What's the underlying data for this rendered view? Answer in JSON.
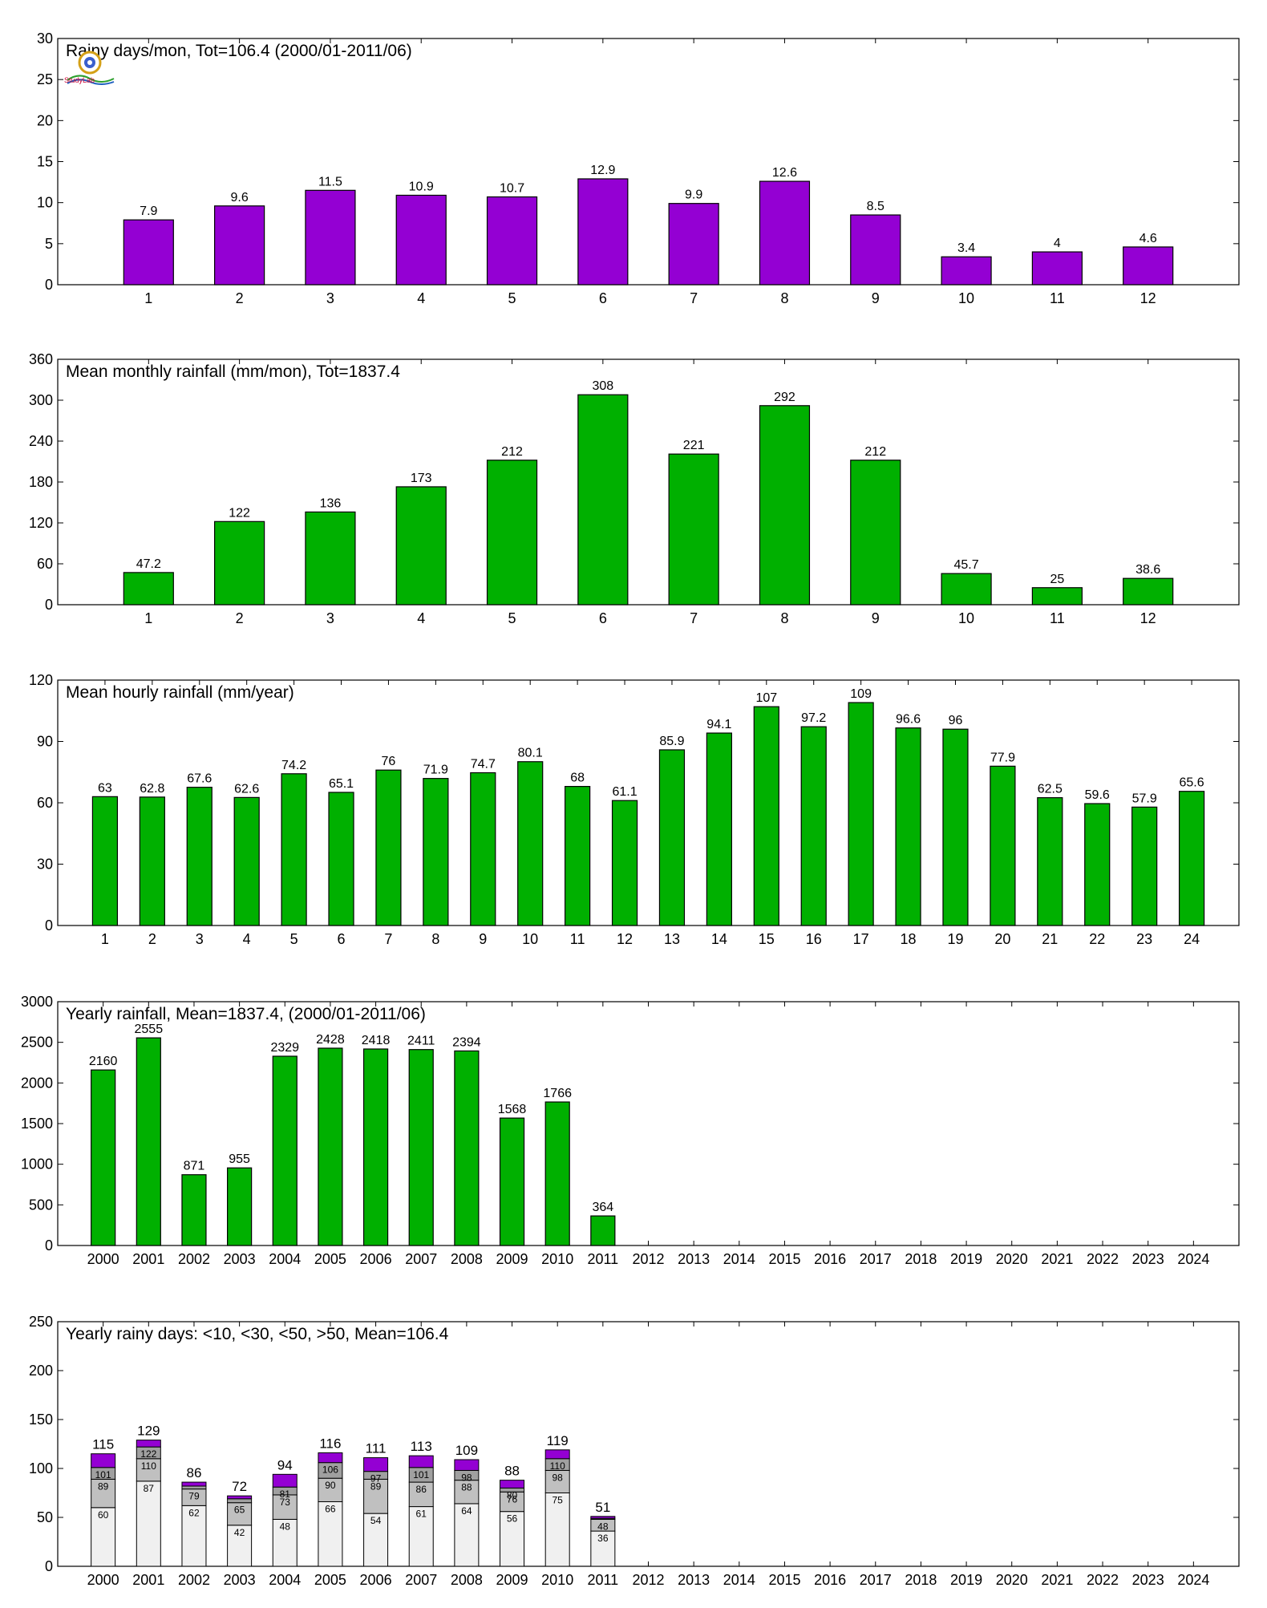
{
  "logo": {
    "text": "StudyLab"
  },
  "chart_data": [
    {
      "type": "bar",
      "title": "Rainy days/mon, Tot=106.4 (2000/01-2011/06)",
      "categories": [
        "1",
        "2",
        "3",
        "4",
        "5",
        "6",
        "7",
        "8",
        "9",
        "10",
        "11",
        "12"
      ],
      "values": [
        7.9,
        9.6,
        11.5,
        10.9,
        10.7,
        12.9,
        9.9,
        12.6,
        8.5,
        3.4,
        4,
        4.6
      ],
      "ylim": [
        0,
        30
      ],
      "yticks": [
        0,
        5,
        10,
        15,
        20,
        25,
        30
      ],
      "color": "#9400d3",
      "grid": false
    },
    {
      "type": "bar",
      "title": "Mean monthly rainfall (mm/mon), Tot=1837.4",
      "categories": [
        "1",
        "2",
        "3",
        "4",
        "5",
        "6",
        "7",
        "8",
        "9",
        "10",
        "11",
        "12"
      ],
      "values": [
        47.2,
        122,
        136,
        173,
        212,
        308,
        221,
        292,
        212,
        45.7,
        25,
        38.6
      ],
      "ylim": [
        0,
        360
      ],
      "yticks": [
        0,
        60,
        120,
        180,
        240,
        300,
        360
      ],
      "color": "#00b000",
      "grid": false
    },
    {
      "type": "bar",
      "title": "Mean hourly rainfall (mm/year)",
      "categories": [
        "1",
        "2",
        "3",
        "4",
        "5",
        "6",
        "7",
        "8",
        "9",
        "10",
        "11",
        "12",
        "13",
        "14",
        "15",
        "16",
        "17",
        "18",
        "19",
        "20",
        "21",
        "22",
        "23",
        "24"
      ],
      "values": [
        63,
        62.8,
        67.6,
        62.6,
        74.2,
        65.1,
        76,
        71.9,
        74.7,
        80.1,
        68,
        61.1,
        85.9,
        94.1,
        107,
        97.2,
        109,
        96.6,
        96,
        77.9,
        62.5,
        59.6,
        57.9,
        65.6
      ],
      "ylim": [
        0,
        120
      ],
      "yticks": [
        0,
        30,
        60,
        90,
        120
      ],
      "color": "#00b000",
      "grid": false
    },
    {
      "type": "bar",
      "title": "Yearly rainfall, Mean=1837.4, (2000/01-2011/06)",
      "categories": [
        "2000",
        "2001",
        "2002",
        "2003",
        "2004",
        "2005",
        "2006",
        "2007",
        "2008",
        "2009",
        "2010",
        "2011",
        "2012",
        "2013",
        "2014",
        "2015",
        "2016",
        "2017",
        "2018",
        "2019",
        "2020",
        "2021",
        "2022",
        "2023",
        "2024"
      ],
      "values": [
        2160,
        2555,
        871,
        955,
        2329,
        2428,
        2418,
        2411,
        2394,
        1568,
        1766,
        364,
        null,
        null,
        null,
        null,
        null,
        null,
        null,
        null,
        null,
        null,
        null,
        null,
        null
      ],
      "ylim": [
        0,
        3000
      ],
      "yticks": [
        0,
        500,
        1000,
        1500,
        2000,
        2500,
        3000
      ],
      "color": "#00b000",
      "grid": false
    },
    {
      "type": "bar",
      "stacked": true,
      "title": "Yearly rainy days: <10, <30, <50, >50, Mean=106.4",
      "categories": [
        "2000",
        "2001",
        "2002",
        "2003",
        "2004",
        "2005",
        "2006",
        "2007",
        "2008",
        "2009",
        "2010",
        "2011",
        "2012",
        "2013",
        "2014",
        "2015",
        "2016",
        "2017",
        "2018",
        "2019",
        "2020",
        "2021",
        "2022",
        "2023",
        "2024"
      ],
      "cumulative": {
        "lt10": [
          60,
          87,
          62,
          42,
          48,
          66,
          54,
          61,
          64,
          56,
          75,
          36
        ],
        "lt30": [
          89,
          110,
          79,
          65,
          73,
          90,
          89,
          86,
          88,
          76,
          98,
          48
        ],
        "lt50": [
          101,
          122,
          82,
          69,
          81,
          106,
          97,
          101,
          98,
          80,
          110,
          49
        ],
        "total": [
          115,
          129,
          86,
          72,
          94,
          116,
          111,
          113,
          109,
          88,
          119,
          51
        ]
      },
      "labels": {
        "lt10": [
          "60",
          "87",
          "62",
          "42",
          "48",
          "66",
          "54",
          "61",
          "64",
          "56",
          "75",
          "36"
        ],
        "lt30": [
          "89",
          "110",
          "79",
          "65",
          "73",
          "90",
          "89",
          "86",
          "88",
          "76",
          "98",
          "48"
        ],
        "lt50": [
          "101",
          "122",
          "",
          "",
          "81",
          "106",
          "97",
          "101",
          "98",
          "80",
          "110",
          ""
        ],
        "total": [
          "115",
          "129",
          "86",
          "72",
          "94",
          "116",
          "111",
          "113",
          "109",
          "88",
          "119",
          "51"
        ]
      },
      "colors": {
        "lt10": "#f0f0f0",
        "lt30": "#c0c0c0",
        "lt50": "#a0a0a0",
        "gt50": "#9400d3"
      },
      "ylim": [
        0,
        250
      ],
      "yticks": [
        0,
        50,
        100,
        150,
        200,
        250
      ],
      "grid": false
    }
  ]
}
